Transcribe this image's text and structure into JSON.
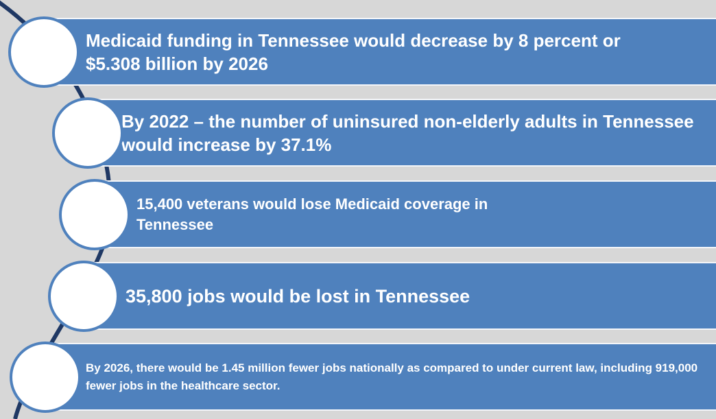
{
  "diagram": {
    "colors": {
      "background": "#d7d7d7",
      "bar": "#4f81bd",
      "arc": "#1f3864",
      "circle_fill": "#ffffff"
    },
    "items": [
      {
        "text": "Medicaid funding in Tennessee would decrease by 8 percent or $5.308 billion by 2026"
      },
      {
        "text": "By 2022 – the number of uninsured non-elderly adults in Tennessee would increase by 37.1%"
      },
      {
        "text": "15,400 veterans would lose Medicaid coverage in Tennessee"
      },
      {
        "text": "35,800 jobs would be lost in Tennessee"
      },
      {
        "text": "By 2026, there would be 1.45 million fewer jobs nationally as compared to under current law, including 919,000 fewer jobs in the healthcare sector."
      }
    ]
  }
}
